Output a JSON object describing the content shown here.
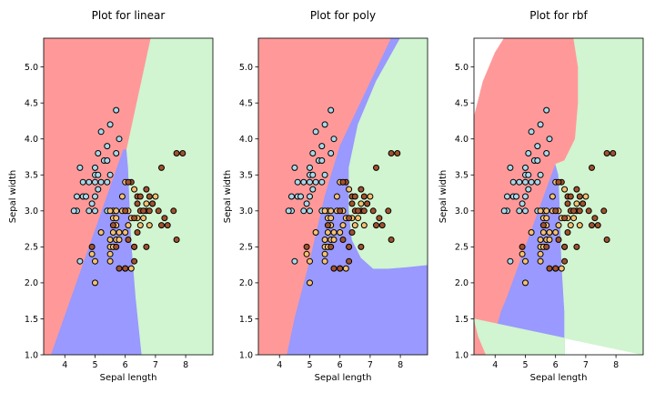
{
  "chart_data": [
    {
      "type": "scatter",
      "title": "Plot for linear",
      "xlabel": "Sepal length",
      "ylabel": "Sepal width",
      "xlim": [
        3.3,
        8.9
      ],
      "ylim": [
        1.0,
        5.4
      ],
      "xticks": [
        4,
        5,
        6,
        7,
        8
      ],
      "yticks": [
        1.0,
        1.5,
        2.0,
        2.5,
        3.0,
        3.5,
        4.0,
        4.5,
        5.0
      ],
      "decision_regions": [
        {
          "class": 0,
          "color": "#ff9999",
          "polygon": [
            [
              3.3,
              5.4
            ],
            [
              6.85,
              5.4
            ],
            [
              6.05,
              3.85
            ],
            [
              5.94,
              3.85
            ],
            [
              3.55,
              1.0
            ],
            [
              3.3,
              1.0
            ]
          ]
        },
        {
          "class": 1,
          "color": "#9999ff",
          "polygon": [
            [
              3.55,
              1.0
            ],
            [
              5.94,
              3.85
            ],
            [
              6.05,
              3.85
            ],
            [
              6.1,
              3.6
            ],
            [
              6.2,
              2.6
            ],
            [
              6.35,
              1.8
            ],
            [
              6.55,
              1.0
            ]
          ]
        },
        {
          "class": 2,
          "color": "#d0f5d0",
          "polygon": [
            [
              6.85,
              5.4
            ],
            [
              8.9,
              5.4
            ],
            [
              8.9,
              1.0
            ],
            [
              6.55,
              1.0
            ],
            [
              6.35,
              1.8
            ],
            [
              6.2,
              2.6
            ],
            [
              6.1,
              3.6
            ],
            [
              6.05,
              3.85
            ]
          ]
        }
      ]
    },
    {
      "type": "scatter",
      "title": "Plot for poly",
      "xlabel": "Sepal length",
      "ylabel": "Sepal width",
      "xlim": [
        3.3,
        8.9
      ],
      "ylim": [
        1.0,
        5.4
      ],
      "xticks": [
        4,
        5,
        6,
        7,
        8
      ],
      "yticks": [
        1.0,
        1.5,
        2.0,
        2.5,
        3.0,
        3.5,
        4.0,
        4.5,
        5.0
      ],
      "decision_regions": [
        {
          "class": 0,
          "color": "#ff9999",
          "polygon": [
            [
              3.3,
              5.4
            ],
            [
              7.7,
              5.4
            ],
            [
              6.0,
              3.9
            ],
            [
              5.5,
              3.2
            ],
            [
              5.0,
              2.3
            ],
            [
              4.5,
              1.5
            ],
            [
              4.25,
              1.0
            ],
            [
              3.3,
              1.0
            ]
          ]
        },
        {
          "class": 1,
          "color": "#9999ff",
          "polygon": [
            [
              4.25,
              1.0
            ],
            [
              4.5,
              1.5
            ],
            [
              5.0,
              2.3
            ],
            [
              5.5,
              3.2
            ],
            [
              6.0,
              3.9
            ],
            [
              7.7,
              5.4
            ],
            [
              8.0,
              5.4
            ],
            [
              7.2,
              4.8
            ],
            [
              6.6,
              4.2
            ],
            [
              6.3,
              3.6
            ],
            [
              6.3,
              3.0
            ],
            [
              6.4,
              2.6
            ],
            [
              6.7,
              2.35
            ],
            [
              7.1,
              2.2
            ],
            [
              7.6,
              2.2
            ],
            [
              8.2,
              2.22
            ],
            [
              8.9,
              2.25
            ],
            [
              8.9,
              1.0
            ]
          ]
        },
        {
          "class": 2,
          "color": "#d0f5d0",
          "polygon": [
            [
              8.0,
              5.4
            ],
            [
              8.9,
              5.4
            ],
            [
              8.9,
              2.25
            ],
            [
              8.2,
              2.22
            ],
            [
              7.6,
              2.2
            ],
            [
              7.1,
              2.2
            ],
            [
              6.7,
              2.35
            ],
            [
              6.4,
              2.6
            ],
            [
              6.3,
              3.0
            ],
            [
              6.3,
              3.6
            ],
            [
              6.6,
              4.2
            ],
            [
              7.2,
              4.8
            ]
          ]
        }
      ]
    },
    {
      "type": "scatter",
      "title": "Plot for rbf",
      "xlabel": "Sepal length",
      "ylabel": "Sepal width",
      "xlim": [
        3.3,
        8.9
      ],
      "ylim": [
        1.0,
        5.4
      ],
      "xticks": [
        4,
        5,
        6,
        7,
        8
      ],
      "yticks": [
        1.0,
        1.5,
        2.0,
        2.5,
        3.0,
        3.5,
        4.0,
        4.5,
        5.0
      ],
      "decision_regions": [
        {
          "class": 0,
          "color": "#ff9999",
          "polygon": [
            [
              3.3,
              4.3
            ],
            [
              3.6,
              4.8
            ],
            [
              4.0,
              5.2
            ],
            [
              4.3,
              5.4
            ],
            [
              6.6,
              5.4
            ],
            [
              6.75,
              5.0
            ],
            [
              6.75,
              4.5
            ],
            [
              6.65,
              4.0
            ],
            [
              6.3,
              3.7
            ],
            [
              6.0,
              3.65
            ],
            [
              4.4,
              1.8
            ],
            [
              4.2,
              1.6
            ],
            [
              4.0,
              1.3
            ],
            [
              4.02,
              1.0
            ],
            [
              3.3,
              1.0
            ]
          ]
        },
        {
          "class": 1,
          "color": "#9999ff",
          "polygon": [
            [
              4.02,
              1.0
            ],
            [
              4.0,
              1.3
            ],
            [
              4.2,
              1.6
            ],
            [
              4.4,
              1.8
            ],
            [
              6.0,
              3.65
            ],
            [
              6.1,
              3.5
            ],
            [
              6.15,
              3.0
            ],
            [
              6.2,
              2.3
            ],
            [
              6.3,
              1.6
            ],
            [
              6.3,
              1.0
            ]
          ]
        },
        {
          "class": 2,
          "color": "#d0f5d0",
          "polygon": [
            [
              3.3,
              1.5
            ],
            [
              3.45,
              1.25
            ],
            [
              3.7,
              1.0
            ],
            [
              6.3,
              1.0
            ],
            [
              6.3,
              1.6
            ],
            [
              6.2,
              2.3
            ],
            [
              6.15,
              3.0
            ],
            [
              6.1,
              3.5
            ],
            [
              6.0,
              3.65
            ],
            [
              6.3,
              3.7
            ],
            [
              6.65,
              4.0
            ],
            [
              6.75,
              4.5
            ],
            [
              6.75,
              5.0
            ],
            [
              6.6,
              5.4
            ],
            [
              8.9,
              5.4
            ],
            [
              8.9,
              1.0
            ]
          ]
        }
      ]
    }
  ],
  "points": {
    "class_colors": [
      "#a8d8ea",
      "#f5c070",
      "#a0522d"
    ],
    "setosa": [
      [
        4.4,
        3.0
      ],
      [
        4.5,
        2.3
      ],
      [
        4.6,
        3.2
      ],
      [
        4.6,
        3.4
      ],
      [
        4.7,
        3.2
      ],
      [
        4.8,
        3.0
      ],
      [
        4.8,
        3.4
      ],
      [
        4.9,
        3.1
      ],
      [
        5.0,
        3.0
      ],
      [
        5.0,
        3.2
      ],
      [
        5.0,
        3.4
      ],
      [
        5.0,
        3.5
      ],
      [
        5.0,
        3.6
      ],
      [
        5.1,
        3.3
      ],
      [
        5.1,
        3.5
      ],
      [
        5.1,
        3.8
      ],
      [
        5.2,
        3.4
      ],
      [
        5.2,
        4.1
      ],
      [
        5.3,
        3.7
      ],
      [
        5.4,
        3.4
      ],
      [
        5.4,
        3.7
      ],
      [
        5.4,
        3.9
      ],
      [
        5.5,
        3.5
      ],
      [
        5.5,
        4.2
      ],
      [
        5.7,
        3.8
      ],
      [
        5.7,
        4.4
      ],
      [
        5.8,
        4.0
      ],
      [
        4.5,
        3.6
      ],
      [
        4.4,
        3.2
      ],
      [
        4.3,
        3.0
      ],
      [
        5.4,
        3.0
      ]
    ],
    "versicolor": [
      [
        4.9,
        2.4
      ],
      [
        5.0,
        2.0
      ],
      [
        5.0,
        2.3
      ],
      [
        5.2,
        2.7
      ],
      [
        5.5,
        2.3
      ],
      [
        5.5,
        2.4
      ],
      [
        5.5,
        2.5
      ],
      [
        5.5,
        2.6
      ],
      [
        5.6,
        2.5
      ],
      [
        5.6,
        2.7
      ],
      [
        5.6,
        2.9
      ],
      [
        5.6,
        3.0
      ],
      [
        5.7,
        2.6
      ],
      [
        5.7,
        2.8
      ],
      [
        5.7,
        2.9
      ],
      [
        5.7,
        3.0
      ],
      [
        5.8,
        2.7
      ],
      [
        5.9,
        3.0
      ],
      [
        5.9,
        3.2
      ],
      [
        6.0,
        2.2
      ],
      [
        6.0,
        2.7
      ],
      [
        6.0,
        3.4
      ],
      [
        6.1,
        2.8
      ],
      [
        6.1,
        3.0
      ],
      [
        6.2,
        2.2
      ],
      [
        6.2,
        2.9
      ],
      [
        6.3,
        2.5
      ],
      [
        6.3,
        3.3
      ],
      [
        6.4,
        2.9
      ],
      [
        6.5,
        2.8
      ],
      [
        6.6,
        2.9
      ],
      [
        6.7,
        3.1
      ],
      [
        6.8,
        2.8
      ],
      [
        6.9,
        3.1
      ],
      [
        7.0,
        3.2
      ],
      [
        5.5,
        3.0
      ],
      [
        5.8,
        2.6
      ]
    ],
    "virginica": [
      [
        4.9,
        2.5
      ],
      [
        5.6,
        2.8
      ],
      [
        5.7,
        2.5
      ],
      [
        5.8,
        2.2
      ],
      [
        6.0,
        2.2
      ],
      [
        6.0,
        3.0
      ],
      [
        6.1,
        2.6
      ],
      [
        6.2,
        3.4
      ],
      [
        6.3,
        2.5
      ],
      [
        6.3,
        2.9
      ],
      [
        6.4,
        2.7
      ],
      [
        6.4,
        3.1
      ],
      [
        6.4,
        3.2
      ],
      [
        6.5,
        3.0
      ],
      [
        6.5,
        3.2
      ],
      [
        6.7,
        2.5
      ],
      [
        6.7,
        3.0
      ],
      [
        6.7,
        3.3
      ],
      [
        6.8,
        3.0
      ],
      [
        6.8,
        3.2
      ],
      [
        6.9,
        3.1
      ],
      [
        7.1,
        3.0
      ],
      [
        7.2,
        3.6
      ],
      [
        7.4,
        2.8
      ],
      [
        7.6,
        3.0
      ],
      [
        7.7,
        2.6
      ],
      [
        7.7,
        3.8
      ],
      [
        7.9,
        3.8
      ],
      [
        6.1,
        3.4
      ],
      [
        6.6,
        3.0
      ],
      [
        7.2,
        2.8
      ],
      [
        7.3,
        2.9
      ],
      [
        6.3,
        2.3
      ]
    ]
  }
}
